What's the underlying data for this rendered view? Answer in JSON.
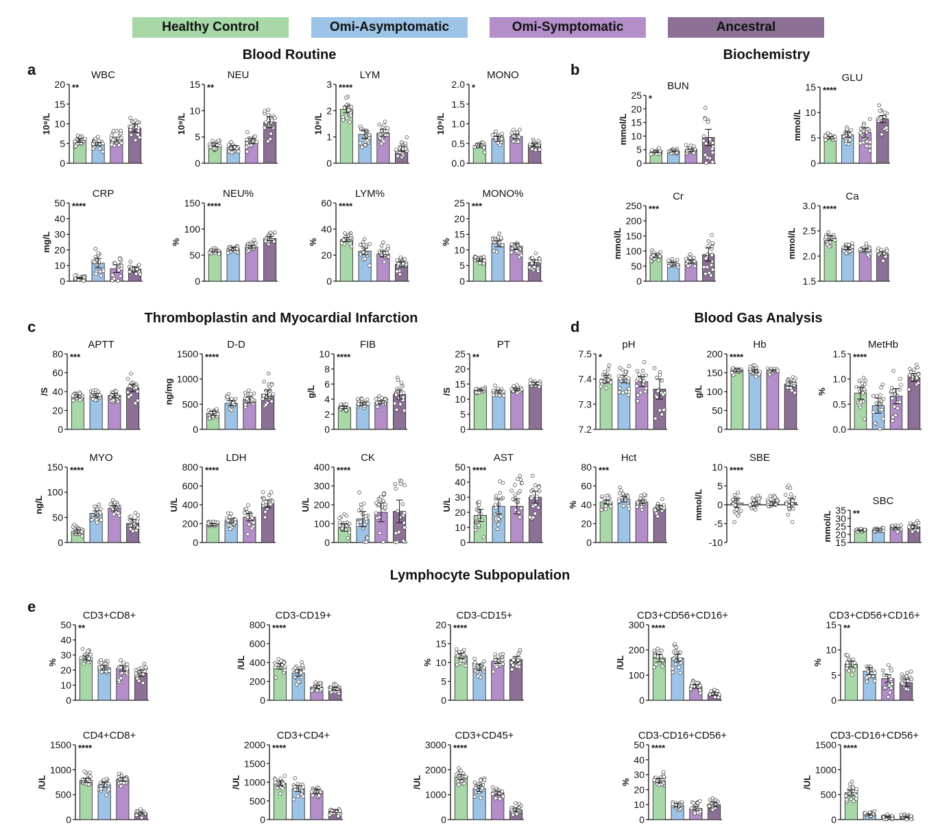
{
  "legend": [
    {
      "label": "Healthy Control",
      "color": "#a8d8a8"
    },
    {
      "label": "Omi-Asymptomatic",
      "color": "#9dc3e6"
    },
    {
      "label": "Omi-Symptomatic",
      "color": "#b38ec8"
    },
    {
      "label": "Ancestral",
      "color": "#8c7096"
    }
  ],
  "sections": {
    "blood_routine": "Blood Routine",
    "biochemistry": "Biochemistry",
    "thrombo": "Thromboplastin and Myocardial Infarction",
    "blood_gas": "Blood Gas Analysis",
    "lympho": "Lymphocyte Subpopulation"
  },
  "panel_letters": [
    "a",
    "b",
    "c",
    "d",
    "e"
  ],
  "chart_data": [
    {
      "type": "bar",
      "id": "wbc",
      "title": "WBC",
      "ylabel": "10⁹/L",
      "sig": "**",
      "ylim": [
        0,
        20
      ],
      "ticks": [
        "0",
        "5",
        "10",
        "15",
        "20"
      ],
      "values": [
        5.8,
        4.9,
        6.0,
        8.9
      ],
      "errors": [
        0.5,
        0.4,
        0.6,
        1.0
      ]
    },
    {
      "type": "bar",
      "id": "neu",
      "title": "NEU",
      "ylabel": "10⁹/L",
      "sig": "**",
      "ylim": [
        0,
        15
      ],
      "ticks": [
        "0",
        "5",
        "10",
        "15"
      ],
      "values": [
        3.5,
        3.0,
        4.2,
        7.8
      ],
      "errors": [
        0.3,
        0.4,
        0.5,
        1.0
      ]
    },
    {
      "type": "bar",
      "id": "lym",
      "title": "LYM",
      "ylabel": "10⁹/L",
      "sig": "****",
      "ylim": [
        0,
        3
      ],
      "ticks": [
        "0",
        "1",
        "2",
        "3"
      ],
      "values": [
        2.05,
        1.1,
        1.15,
        0.55
      ],
      "errors": [
        0.12,
        0.15,
        0.14,
        0.1
      ]
    },
    {
      "type": "bar",
      "id": "mono",
      "title": "MONO",
      "ylabel": "10⁹/L",
      "sig": "*",
      "ylim": [
        0,
        2
      ],
      "ticks": [
        "0.0",
        "0.5",
        "1.0",
        "1.5",
        "2.0"
      ],
      "values": [
        0.45,
        0.62,
        0.68,
        0.47
      ],
      "errors": [
        0.04,
        0.07,
        0.06,
        0.04
      ]
    },
    {
      "type": "bar",
      "id": "crp",
      "title": "CRP",
      "ylabel": "mg/L",
      "sig": "****",
      "ylim": [
        0,
        50
      ],
      "ticks": [
        "0",
        "10",
        "20",
        "30",
        "40",
        "50"
      ],
      "values": [
        2.0,
        11.5,
        8.0,
        7.8
      ],
      "errors": [
        0.4,
        3.0,
        2.5,
        1.2
      ]
    },
    {
      "type": "bar",
      "id": "neup",
      "title": "NEU%",
      "ylabel": "%",
      "sig": "****",
      "ylim": [
        0,
        150
      ],
      "ticks": [
        "0",
        "50",
        "100",
        "150"
      ],
      "values": [
        58,
        62,
        66,
        82
      ],
      "errors": [
        2,
        3,
        3,
        4
      ]
    },
    {
      "type": "bar",
      "id": "lymp",
      "title": "LYM%",
      "ylabel": "%",
      "sig": "****",
      "ylim": [
        0,
        60
      ],
      "ticks": [
        "0",
        "20",
        "40",
        "60"
      ],
      "values": [
        32,
        23,
        21,
        13
      ],
      "errors": [
        1.5,
        2.5,
        2.0,
        2.0
      ]
    },
    {
      "type": "bar",
      "id": "monop",
      "title": "MONO%",
      "ylabel": "%",
      "sig": "***",
      "ylim": [
        0,
        25
      ],
      "ticks": [
        "0",
        "5",
        "10",
        "15",
        "20",
        "25"
      ],
      "values": [
        6.8,
        12.0,
        11.2,
        6.0
      ],
      "errors": [
        0.4,
        1.0,
        1.0,
        0.8
      ]
    },
    {
      "type": "bar",
      "id": "bun",
      "title": "BUN",
      "ylabel": "mmol/L",
      "sig": "*",
      "ylim": [
        0,
        25
      ],
      "ticks": [
        "0",
        "5",
        "10",
        "15",
        "20",
        "25"
      ],
      "values": [
        4.2,
        4.5,
        4.8,
        9.5
      ],
      "errors": [
        0.3,
        0.3,
        0.5,
        3.0
      ]
    },
    {
      "type": "bar",
      "id": "glu",
      "title": "GLU",
      "ylabel": "mmol/L",
      "sig": "****",
      "ylim": [
        0,
        15
      ],
      "ticks": [
        "0",
        "5",
        "10",
        "15"
      ],
      "values": [
        5.0,
        5.6,
        6.0,
        8.7
      ],
      "errors": [
        0.2,
        0.5,
        1.0,
        0.7
      ]
    },
    {
      "type": "bar",
      "id": "cr",
      "title": "Cr",
      "ylabel": "mmol/L",
      "sig": "***",
      "ylim": [
        0,
        250
      ],
      "ticks": [
        "0",
        "50",
        "100",
        "150",
        "200",
        "250"
      ],
      "values": [
        85,
        58,
        65,
        88
      ],
      "errors": [
        6,
        5,
        5,
        22
      ]
    },
    {
      "type": "bar",
      "id": "ca",
      "title": "Ca",
      "ylabel": "mmol/L",
      "sig": "****",
      "ylim": [
        1.5,
        3.0
      ],
      "ticks": [
        "1.5",
        "2.0",
        "2.5",
        "3.0"
      ],
      "values": [
        2.36,
        2.15,
        2.12,
        2.05
      ],
      "errors": [
        0.05,
        0.03,
        0.03,
        0.03
      ]
    },
    {
      "type": "bar",
      "id": "aptt",
      "title": "APTT",
      "ylabel": "/S",
      "sig": "***",
      "ylim": [
        0,
        80
      ],
      "ticks": [
        "0",
        "20",
        "40",
        "60",
        "80"
      ],
      "values": [
        35,
        36,
        36,
        44
      ],
      "errors": [
        1.5,
        2.0,
        2.0,
        4.0
      ]
    },
    {
      "type": "bar",
      "id": "dd",
      "title": "D-D",
      "ylabel": "ng/mg",
      "sig": "****",
      "ylim": [
        0,
        1500
      ],
      "ticks": [
        "0",
        "500",
        "1000",
        "1500"
      ],
      "values": [
        320,
        520,
        590,
        700
      ],
      "errors": [
        40,
        50,
        60,
        80
      ]
    },
    {
      "type": "bar",
      "id": "fib",
      "title": "FIB",
      "ylabel": "g/L",
      "sig": "****",
      "ylim": [
        0,
        10
      ],
      "ticks": [
        "0",
        "2",
        "4",
        "6",
        "8",
        "10"
      ],
      "values": [
        2.9,
        3.4,
        3.6,
        4.6
      ],
      "errors": [
        0.15,
        0.2,
        0.2,
        0.6
      ]
    },
    {
      "type": "bar",
      "id": "pt",
      "title": "PT",
      "ylabel": "/S",
      "sig": "**",
      "ylim": [
        0,
        25
      ],
      "ticks": [
        "0",
        "5",
        "10",
        "15",
        "20",
        "25"
      ],
      "values": [
        13,
        12.5,
        13.2,
        15.2
      ],
      "errors": [
        0.3,
        0.5,
        0.4,
        0.4
      ]
    },
    {
      "type": "bar",
      "id": "myo",
      "title": "MYO",
      "ylabel": "ng/L",
      "sig": "****",
      "ylim": [
        0,
        150
      ],
      "ticks": [
        "0",
        "50",
        "100",
        "150"
      ],
      "values": [
        22,
        58,
        68,
        38
      ],
      "errors": [
        4,
        5,
        5,
        8
      ]
    },
    {
      "type": "bar",
      "id": "ldh",
      "title": "LDH",
      "ylabel": "U/L",
      "sig": "****",
      "ylim": [
        0,
        800
      ],
      "ticks": [
        "0",
        "200",
        "400",
        "600",
        "800"
      ],
      "values": [
        190,
        230,
        270,
        410
      ],
      "errors": [
        10,
        20,
        40,
        40
      ]
    },
    {
      "type": "bar",
      "id": "ck",
      "title": "CK",
      "ylabel": "U/L",
      "sig": "****",
      "ylim": [
        0,
        400
      ],
      "ticks": [
        "0",
        "100",
        "200",
        "300",
        "400"
      ],
      "values": [
        80,
        125,
        160,
        165
      ],
      "errors": [
        20,
        40,
        50,
        60
      ]
    },
    {
      "type": "bar",
      "id": "ast",
      "title": "AST",
      "ylabel": "U/L",
      "sig": "****",
      "ylim": [
        0,
        50
      ],
      "ticks": [
        "0",
        "10",
        "20",
        "30",
        "40",
        "50"
      ],
      "values": [
        18,
        24,
        24,
        30
      ],
      "errors": [
        4,
        5,
        5,
        4
      ]
    },
    {
      "type": "bar",
      "id": "ph",
      "title": "pH",
      "ylabel": "",
      "sig": "*",
      "ylim": [
        7.2,
        7.5
      ],
      "ticks": [
        "7.2",
        "7.3",
        "7.4",
        "7.5"
      ],
      "values": [
        7.4,
        7.4,
        7.39,
        7.36
      ],
      "errors": [
        0.015,
        0.015,
        0.02,
        0.04
      ]
    },
    {
      "type": "bar",
      "id": "hb",
      "title": "Hb",
      "ylabel": "g/L",
      "sig": "****",
      "ylim": [
        0,
        200
      ],
      "ticks": [
        "0",
        "50",
        "100",
        "150",
        "200"
      ],
      "values": [
        157,
        155,
        155,
        120
      ],
      "errors": [
        3,
        4,
        3,
        6
      ]
    },
    {
      "type": "bar",
      "id": "methb",
      "title": "MetHb",
      "ylabel": "%",
      "sig": "****",
      "ylim": [
        0,
        1.5
      ],
      "ticks": [
        "0.0",
        "0.5",
        "1.0",
        "1.5"
      ],
      "values": [
        0.72,
        0.47,
        0.66,
        1.03
      ],
      "errors": [
        0.12,
        0.15,
        0.15,
        0.08
      ]
    },
    {
      "type": "bar",
      "id": "hct",
      "title": "Hct",
      "ylabel": "%",
      "sig": "***",
      "ylim": [
        0,
        80
      ],
      "ticks": [
        "0",
        "20",
        "40",
        "60",
        "80"
      ],
      "values": [
        43,
        46,
        43,
        37
      ],
      "errors": [
        2,
        3,
        2,
        2
      ]
    },
    {
      "type": "bar",
      "id": "sbe",
      "title": "SBE",
      "ylabel": "mmol/L",
      "sig": "****",
      "ylim": [
        -10,
        10
      ],
      "ticks": [
        "-10",
        "-5",
        "0",
        "5",
        "10"
      ],
      "values": [
        0.5,
        0.2,
        0.3,
        0.6
      ],
      "errors": [
        1.2,
        0.6,
        0.6,
        1.2
      ]
    },
    {
      "type": "bar",
      "id": "sbc",
      "title": "SBC",
      "ylabel": "mmol/L",
      "sig": "**",
      "ylim": [
        15,
        35
      ],
      "ticks": [
        "15",
        "20",
        "25",
        "30",
        "35"
      ],
      "values": [
        22.5,
        23.0,
        23.8,
        24.8
      ],
      "errors": [
        0.3,
        0.5,
        0.6,
        1.0
      ]
    },
    {
      "type": "bar",
      "id": "cd3cd8",
      "title": "CD3+CD8+",
      "ylabel": "%",
      "sig": "**",
      "ylim": [
        0,
        50
      ],
      "ticks": [
        "0",
        "10",
        "20",
        "30",
        "40",
        "50"
      ],
      "values": [
        28,
        21.5,
        21,
        18
      ],
      "errors": [
        1.5,
        1.5,
        1.8,
        2.0
      ]
    },
    {
      "type": "bar",
      "id": "cd19",
      "title": "CD3-CD19+",
      "ylabel": "/UL",
      "sig": "****",
      "ylim": [
        0,
        800
      ],
      "ticks": [
        "0",
        "200",
        "400",
        "600",
        "800"
      ],
      "values": [
        360,
        290,
        140,
        120
      ],
      "errors": [
        30,
        35,
        15,
        15
      ]
    },
    {
      "type": "bar",
      "id": "cd15",
      "title": "CD3-CD15+",
      "ylabel": "%",
      "sig": "****",
      "ylim": [
        0,
        20
      ],
      "ticks": [
        "0",
        "5",
        "10",
        "15",
        "20"
      ],
      "values": [
        11.8,
        8.8,
        10.4,
        10.8
      ],
      "errors": [
        0.7,
        0.8,
        0.7,
        0.8
      ]
    },
    {
      "type": "bar",
      "id": "cd56a",
      "title": "CD3+CD56+CD16+",
      "ylabel": "/UL",
      "sig": "****",
      "ylim": [
        0,
        300
      ],
      "ticks": [
        "0",
        "100",
        "200",
        "300"
      ],
      "values": [
        168,
        168,
        55,
        25
      ],
      "errors": [
        15,
        15,
        7,
        5
      ]
    },
    {
      "type": "bar",
      "id": "cd56b",
      "title": "CD3+CD56+CD16+",
      "ylabel": "%",
      "sig": "**",
      "ylim": [
        0,
        15
      ],
      "ticks": [
        "0",
        "5",
        "10",
        "15"
      ],
      "values": [
        7.2,
        5.8,
        4.3,
        3.5
      ],
      "errors": [
        0.6,
        0.7,
        0.8,
        0.7
      ]
    },
    {
      "type": "bar",
      "id": "cd4cd8",
      "title": "CD4+CD8+",
      "ylabel": "/UL",
      "sig": "****",
      "ylim": [
        0,
        1500
      ],
      "ticks": [
        "0",
        "500",
        "1000",
        "1500"
      ],
      "values": [
        790,
        700,
        810,
        130
      ],
      "errors": [
        40,
        50,
        40,
        20
      ]
    },
    {
      "type": "bar",
      "id": "cd3cd4",
      "title": "CD3+CD4+",
      "ylabel": "/UL",
      "sig": "****",
      "ylim": [
        0,
        2000
      ],
      "ticks": [
        "0",
        "500",
        "1000",
        "1500",
        "2000"
      ],
      "values": [
        970,
        830,
        760,
        230
      ],
      "errors": [
        60,
        80,
        50,
        40
      ]
    },
    {
      "type": "bar",
      "id": "cd45",
      "title": "CD3+CD45+",
      "ylabel": "/UL",
      "sig": "****",
      "ylim": [
        0,
        3000
      ],
      "ticks": [
        "0",
        "1000",
        "2000",
        "3000"
      ],
      "values": [
        1700,
        1250,
        1070,
        380
      ],
      "errors": [
        100,
        130,
        80,
        60
      ]
    },
    {
      "type": "bar",
      "id": "cd16a",
      "title": "CD3-CD16+CD56+",
      "ylabel": "%",
      "sig": "****",
      "ylim": [
        0,
        50
      ],
      "ticks": [
        "0",
        "10",
        "20",
        "30",
        "40",
        "50"
      ],
      "values": [
        26,
        9.5,
        7.5,
        10
      ],
      "errors": [
        1.5,
        1.2,
        1.2,
        1.5
      ]
    },
    {
      "type": "bar",
      "id": "cd16b",
      "title": "CD3-CD16+CD56+",
      "ylabel": "/UL",
      "sig": "****",
      "ylim": [
        0,
        1500
      ],
      "ticks": [
        "0",
        "500",
        "1000",
        "1500"
      ],
      "values": [
        540,
        100,
        60,
        60
      ],
      "errors": [
        60,
        15,
        10,
        10
      ]
    }
  ]
}
